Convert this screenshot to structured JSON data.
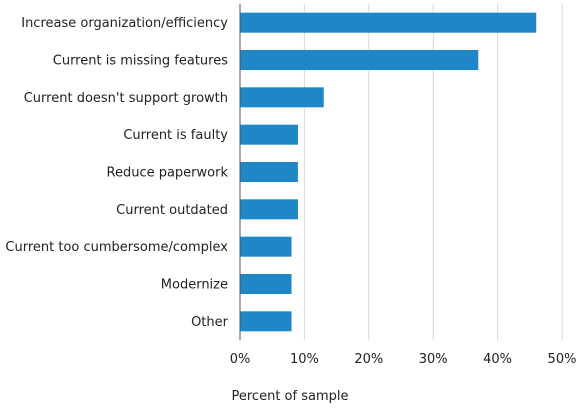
{
  "chart_data": {
    "type": "bar",
    "orientation": "horizontal",
    "categories": [
      "Increase organization/efficiency",
      "Current is missing features",
      "Current doesn't support growth",
      "Current is faulty",
      "Reduce paperwork",
      "Current outdated",
      "Current too cumbersome/complex",
      "Modernize",
      "Other"
    ],
    "values": [
      46,
      37,
      13,
      9,
      9,
      9,
      8,
      8,
      8
    ],
    "xlabel": "Percent of sample",
    "ylabel": "",
    "xlim": [
      0,
      50
    ],
    "xticks": [
      0,
      10,
      20,
      30,
      40,
      50
    ],
    "xtick_labels": [
      "0%",
      "10%",
      "20%",
      "30%",
      "40%",
      "50%"
    ],
    "grid": "vertical",
    "bar_color": "#1f87c8"
  }
}
